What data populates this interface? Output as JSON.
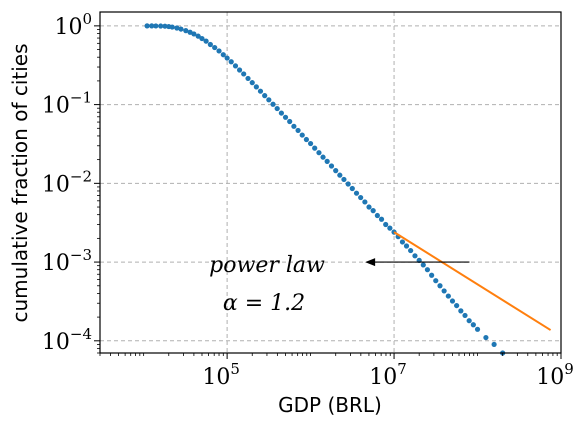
{
  "chart_data": {
    "type": "scatter",
    "xlabel": "GDP (BRL)",
    "ylabel": "cumulative fraction of cities",
    "x_scale": "log",
    "y_scale": "log",
    "xlim": [
      3000,
      1000000000
    ],
    "ylim": [
      7e-05,
      1.5
    ],
    "x_ticks": [
      {
        "value": 100000,
        "base": "10",
        "exp": "5"
      },
      {
        "value": 10000000,
        "base": "10",
        "exp": "7"
      },
      {
        "value": 1000000000,
        "base": "10",
        "exp": "9"
      }
    ],
    "y_ticks": [
      {
        "value": 1,
        "base": "10",
        "exp": "0"
      },
      {
        "value": 0.1,
        "base": "10",
        "exp": "−1"
      },
      {
        "value": 0.01,
        "base": "10",
        "exp": "−2"
      },
      {
        "value": 0.001,
        "base": "10",
        "exp": "−3"
      },
      {
        "value": 0.0001,
        "base": "10",
        "exp": "−4"
      }
    ],
    "grid": true,
    "series": [
      {
        "kind": "scatter",
        "color": "#1f77b4",
        "points": [
          [
            11000,
            1.0
          ],
          [
            12500,
            1.0
          ],
          [
            14000,
            0.998
          ],
          [
            16000,
            0.995
          ],
          [
            18000,
            0.99
          ],
          [
            20000,
            0.98
          ],
          [
            22000,
            0.965
          ],
          [
            25000,
            0.94
          ],
          [
            28000,
            0.91
          ],
          [
            32000,
            0.87
          ],
          [
            36000,
            0.83
          ],
          [
            40000,
            0.79
          ],
          [
            45000,
            0.74
          ],
          [
            50000,
            0.69
          ],
          [
            56000,
            0.64
          ],
          [
            63000,
            0.58
          ],
          [
            71000,
            0.53
          ],
          [
            80000,
            0.48
          ],
          [
            90000,
            0.43
          ],
          [
            100000,
            0.39
          ],
          [
            112000,
            0.35
          ],
          [
            126000,
            0.31
          ],
          [
            141000,
            0.275
          ],
          [
            158000,
            0.245
          ],
          [
            178000,
            0.215
          ],
          [
            200000,
            0.19
          ],
          [
            224000,
            0.168
          ],
          [
            251000,
            0.148
          ],
          [
            282000,
            0.13
          ],
          [
            316000,
            0.115
          ],
          [
            355000,
            0.101
          ],
          [
            398000,
            0.089
          ],
          [
            447000,
            0.078
          ],
          [
            501000,
            0.069
          ],
          [
            562000,
            0.061
          ],
          [
            631000,
            0.053
          ],
          [
            708000,
            0.047
          ],
          [
            794000,
            0.041
          ],
          [
            891000,
            0.036
          ],
          [
            1000000,
            0.032
          ],
          [
            1120000,
            0.028
          ],
          [
            1260000,
            0.0245
          ],
          [
            1410000,
            0.0215
          ],
          [
            1580000,
            0.019
          ],
          [
            1780000,
            0.0166
          ],
          [
            2000000,
            0.0145
          ],
          [
            2240000,
            0.0127
          ],
          [
            2510000,
            0.0112
          ],
          [
            2820000,
            0.0098
          ],
          [
            3160000,
            0.0086
          ],
          [
            3550000,
            0.0075
          ],
          [
            3980000,
            0.0066
          ],
          [
            4470000,
            0.0058
          ],
          [
            5010000,
            0.005
          ],
          [
            5620000,
            0.0045
          ],
          [
            6310000,
            0.0039
          ],
          [
            7080000,
            0.0035
          ],
          [
            7940000,
            0.003
          ],
          [
            8910000,
            0.0027
          ],
          [
            10000000,
            0.0024
          ],
          [
            11200000,
            0.0021
          ],
          [
            12600000,
            0.0018
          ],
          [
            14100000,
            0.0016
          ],
          [
            15800000,
            0.0014
          ],
          [
            17800000,
            0.0012
          ],
          [
            20000000,
            0.00105
          ],
          [
            22400000,
            0.00092
          ],
          [
            25100000,
            0.0008
          ],
          [
            28200000,
            0.00068
          ],
          [
            31600000,
            0.00058
          ],
          [
            35500000,
            0.0005
          ],
          [
            39800000,
            0.00043
          ],
          [
            44700000,
            0.00037
          ],
          [
            50100000,
            0.00032
          ],
          [
            56200000,
            0.00028
          ],
          [
            63100000,
            0.00024
          ],
          [
            70800000,
            0.00021
          ],
          [
            79400000,
            0.00018
          ],
          [
            89100000,
            0.00016
          ],
          [
            100000000,
            0.00014
          ],
          [
            126000000,
            0.00011
          ],
          [
            158000000,
            9e-05
          ],
          [
            200000000,
            7e-05
          ]
        ]
      },
      {
        "kind": "line",
        "name": "power law",
        "color": "#ff7f0e",
        "points": [
          [
            10000000,
            0.0024
          ],
          [
            750000000,
            0.000137
          ]
        ]
      }
    ],
    "annotation": {
      "text_line1": "power law",
      "text_line2": "α = 1.2",
      "arrow_from": [
        80000000,
        0.001
      ],
      "arrow_to": [
        4500000,
        0.001
      ]
    }
  }
}
